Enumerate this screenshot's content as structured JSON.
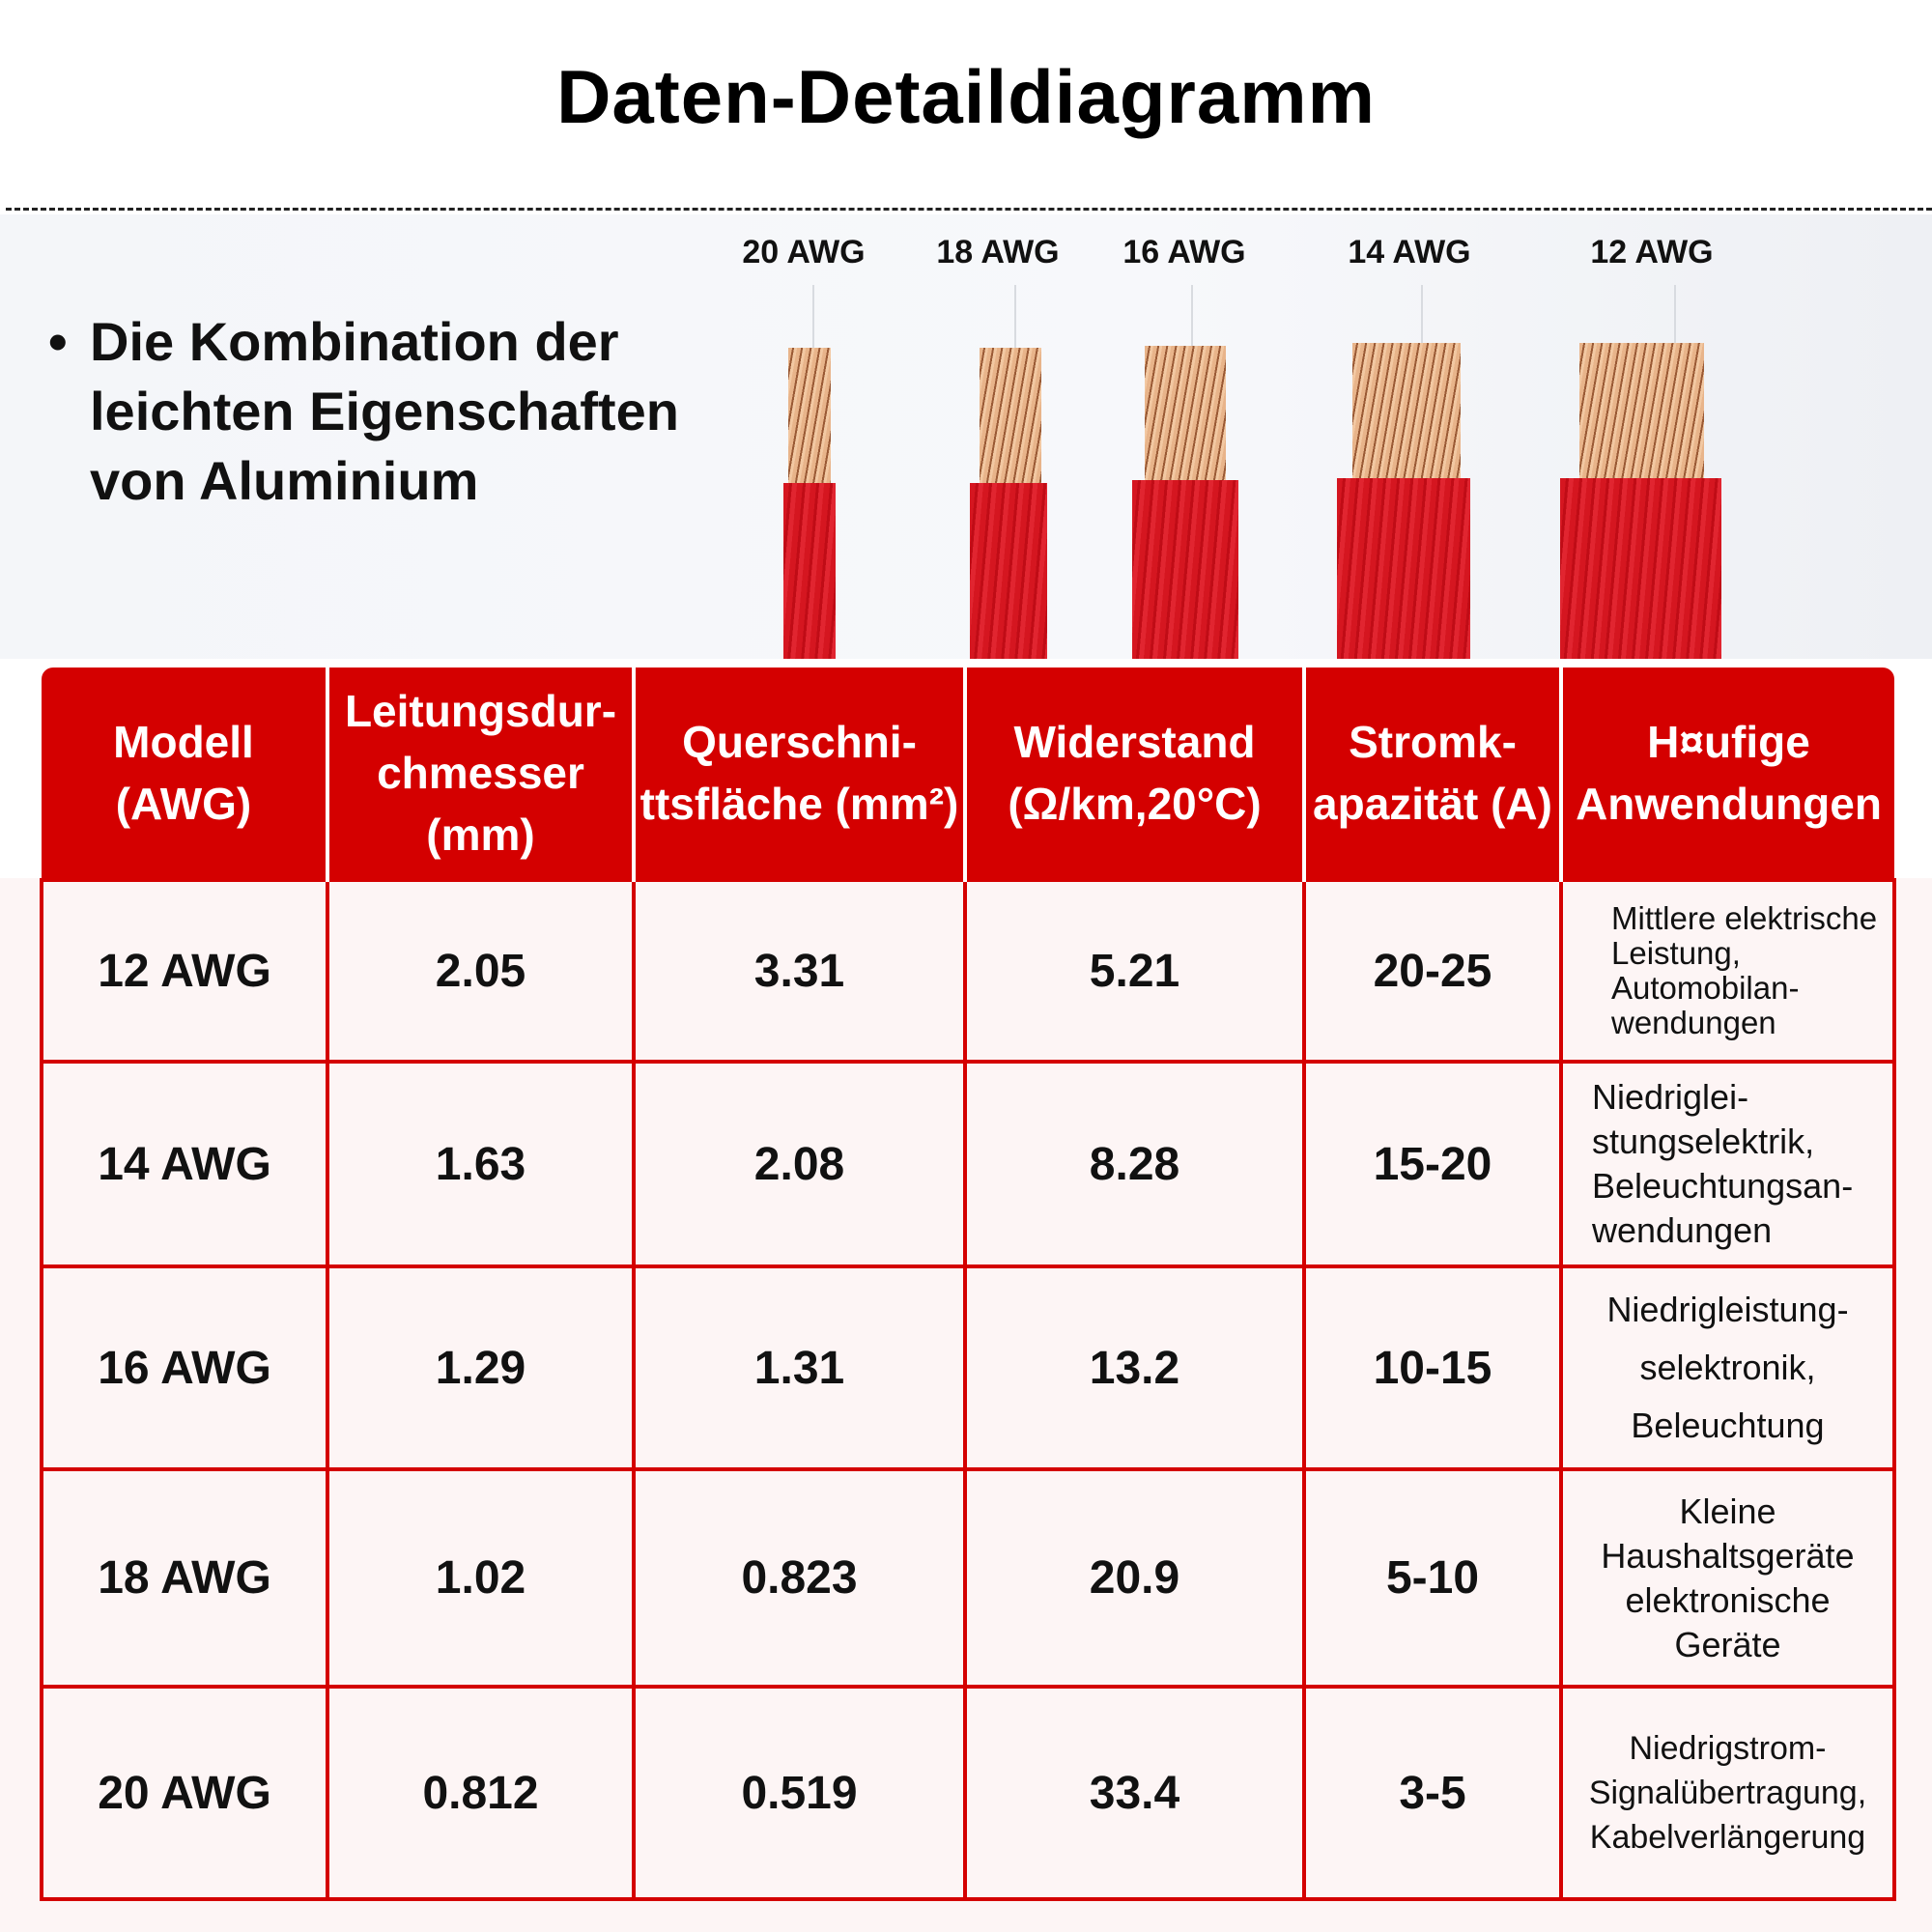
{
  "title": "Daten-Detaildiagramm",
  "hero": {
    "bullet": "•",
    "text": "Die Kombination der leichten Eigenschaften von Aluminium",
    "wire_labels": [
      "20 AWG",
      "18 AWG",
      "16 AWG",
      "14 AWG",
      "12 AWG"
    ]
  },
  "table": {
    "headers": [
      "Modell (AWG)",
      "Leitungsdur-chmesser (mm)",
      "Querschni-ttsfläche (mm²)",
      "Widerstand (Ω/km,20°C)",
      "Stromk-apazität (A)",
      "H¤ufige Anwendungen"
    ],
    "rows": [
      [
        "12 AWG",
        "2.05",
        "3.31",
        "5.21",
        "20-25",
        "Mittlere elektrische Leistung, Automobilan-wendungen"
      ],
      [
        "14 AWG",
        "1.63",
        "2.08",
        "8.28",
        "15-20",
        "Niedriglei-stungselektrik, Beleuchtungsan-wendungen"
      ],
      [
        "16 AWG",
        "1.29",
        "1.31",
        "13.2",
        "10-15",
        "Niedrigleistung-selektronik, Beleuchtung"
      ],
      [
        "18 AWG",
        "1.02",
        "0.823",
        "20.9",
        "5-10",
        "Kleine Haushaltsgeräte elektronische Geräte"
      ],
      [
        "20 AWG",
        "0.812",
        "0.519",
        "33.4",
        "3-5",
        "Niedrigstrom-Signalübertragung, Kabelverlängerung"
      ]
    ]
  },
  "colors": {
    "accent": "#d40000",
    "table_bg": "#fdf5f5"
  }
}
